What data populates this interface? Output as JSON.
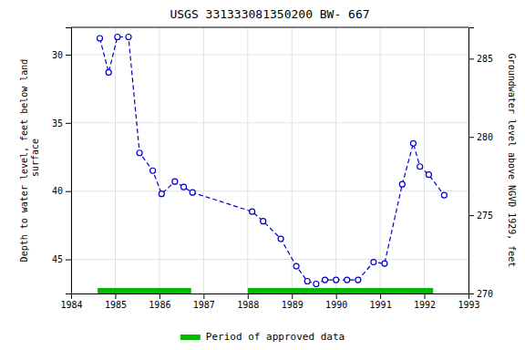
{
  "chart_data": {
    "type": "line",
    "title": "USGS 331333081350200 BW- 667",
    "ylabel": "Depth to water level, feet below land\n surface",
    "y2label": "Groundwater level above NGVD 1929, feet",
    "x": [
      1984.65,
      1984.85,
      1985.05,
      1985.3,
      1985.55,
      1985.85,
      1986.05,
      1986.35,
      1986.55,
      1986.75,
      1988.1,
      1988.35,
      1988.75,
      1989.1,
      1989.35,
      1989.55,
      1989.75,
      1990.0,
      1990.25,
      1990.5,
      1990.85,
      1991.1,
      1991.5,
      1991.75,
      1991.9,
      1992.1,
      1992.45
    ],
    "series": [
      {
        "values": [
          28.8,
          31.3,
          28.7,
          28.7,
          37.2,
          38.5,
          40.2,
          39.3,
          39.7,
          40.1,
          41.5,
          42.2,
          43.5,
          45.5,
          46.6,
          46.8,
          46.5,
          46.5,
          46.5,
          46.5,
          45.2,
          45.3,
          39.5,
          36.5,
          38.2,
          38.8,
          40.3
        ],
        "color": "#0000cc",
        "marker": "circle",
        "line_style": "dashed"
      }
    ],
    "approved_periods": {
      "name": "Period of approved data",
      "color": "#00bb00",
      "ranges": [
        [
          1984.6,
          1986.72
        ],
        [
          1988.0,
          1992.2
        ]
      ]
    },
    "xlim": [
      1984,
      1993
    ],
    "xticks": [
      1984,
      1985,
      1986,
      1987,
      1988,
      1989,
      1990,
      1991,
      1992,
      1993
    ],
    "ylim": [
      47.5,
      28.0
    ],
    "yticks": [
      30,
      35,
      40,
      45
    ],
    "y2lim": [
      270,
      287
    ],
    "y2ticks": [
      270,
      275,
      280,
      285
    ],
    "grid": true,
    "legend": "bottom"
  }
}
